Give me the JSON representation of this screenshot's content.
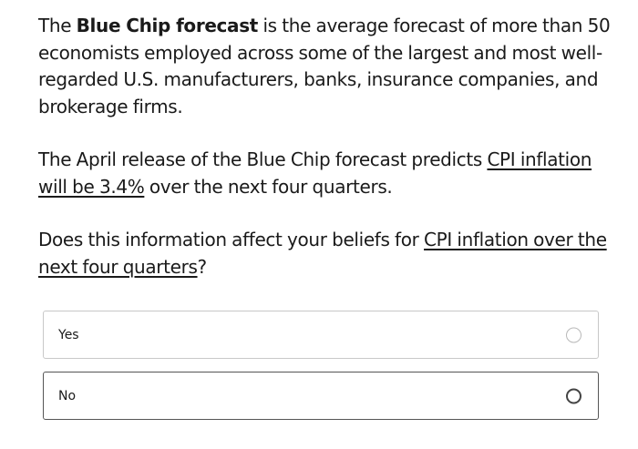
{
  "intro": {
    "lead": "The ",
    "bold": "Blue Chip forecast",
    "rest": " is the average forecast of more than 50 economists employed across some of the largest and most well-regarded U.S. manufacturers, banks, insurance companies, and brokerage firms."
  },
  "forecast": {
    "lead": "The April release of the Blue Chip forecast predicts ",
    "underlined": "CPI inflation will be 3.4%",
    "rest": " over the next four quarters."
  },
  "question": {
    "lead": "Does this information affect your beliefs for ",
    "underlined": "CPI inflation over the next four quarters",
    "rest": "?"
  },
  "options": [
    {
      "label": "Yes",
      "selected": false
    },
    {
      "label": "No",
      "selected": false
    }
  ]
}
